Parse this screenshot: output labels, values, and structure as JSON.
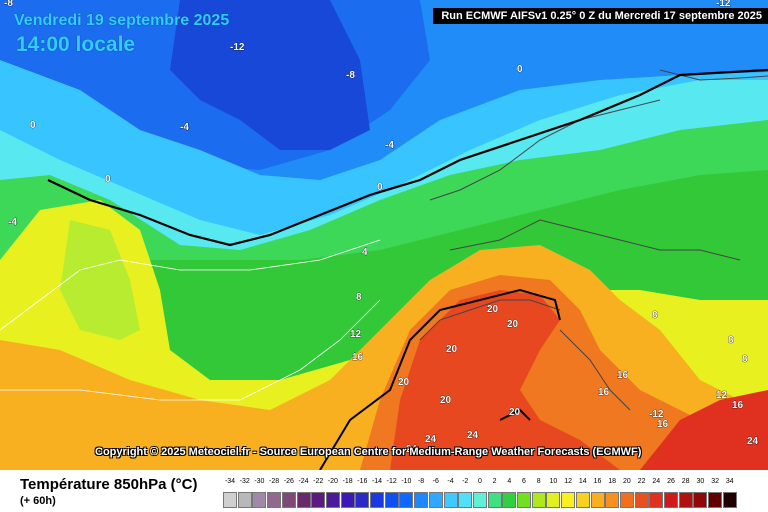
{
  "header": {
    "date": "Vendredi 19 septembre 2025",
    "time": "14:00 locale",
    "run": "Run ECMWF AIFSv1 0.25° 0 Z du Mercredi 17 septembre 2025"
  },
  "copyright": "Copyright © 2025 Meteociel.fr - Source European Centre for Medium-Range Weather Forecasts (ECMWF)",
  "legend": {
    "variable": "Température 850hPa (°C)",
    "step": "(+ 60h)",
    "ticks": [
      "-34",
      "-32",
      "-30",
      "-28",
      "-26",
      "-24",
      "-22",
      "-20",
      "-18",
      "-16",
      "-14",
      "-12",
      "-10",
      "-8",
      "-6",
      "-4",
      "-2",
      "0",
      "2",
      "4",
      "6",
      "8",
      "10",
      "12",
      "14",
      "16",
      "18",
      "20",
      "22",
      "24",
      "26",
      "28",
      "30",
      "32",
      "34"
    ],
    "colors": [
      "#d0d0d0",
      "#b8b8b8",
      "#a088a8",
      "#906890",
      "#804878",
      "#6a2a6a",
      "#5a1a80",
      "#4a1a9a",
      "#3a1ab0",
      "#2a2ac8",
      "#1a3ae0",
      "#1050f0",
      "#1068ff",
      "#2088ff",
      "#30a8ff",
      "#40c8ff",
      "#50e0f8",
      "#60f0d8",
      "#40e080",
      "#30d040",
      "#70e020",
      "#b0e820",
      "#e0f020",
      "#f8f020",
      "#f8d020",
      "#f8b020",
      "#f89020",
      "#f07020",
      "#e85020",
      "#e03020",
      "#d01a1a",
      "#b01010",
      "#900808",
      "#600000",
      "#200000"
    ]
  },
  "isotherm_labels": [
    "-12",
    "-8",
    "-8",
    "-4",
    "-4",
    "-4",
    "0",
    "0",
    "0",
    "0",
    "4",
    "8",
    "12",
    "16",
    "20",
    "20",
    "20",
    "20",
    "20",
    "20",
    "24",
    "24",
    "24",
    "8",
    "8",
    "8",
    "12",
    "16",
    "16",
    "-12",
    "-12",
    "16",
    "16",
    "24"
  ]
}
